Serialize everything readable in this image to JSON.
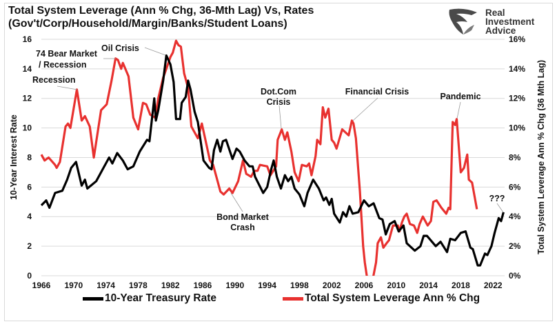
{
  "chart_data": {
    "type": "line",
    "title": "Total System Leverage (Ann % Chg, 36-Mth Lag) Vs, Rates",
    "subtitle": "(Gov't/Corp/Household/Margin/Banks/Student Loans)",
    "ylabel_left": "10-Year Interest Rate",
    "ylabel_right": "Total System Leverage Ann % Chg (36 Mth Lag)",
    "ylim_left": [
      0,
      16
    ],
    "ylim_right": [
      0,
      16
    ],
    "y_ticks_left": [
      "0",
      "2",
      "4",
      "6",
      "8",
      "10",
      "12",
      "14",
      "16"
    ],
    "y_ticks_right": [
      "0%",
      "2%",
      "4%",
      "6%",
      "8%",
      "10%",
      "12%",
      "14%",
      "16%"
    ],
    "x_ticks": [
      "1966",
      "1970",
      "1974",
      "1978",
      "1982",
      "1986",
      "1990",
      "1994",
      "1998",
      "2002",
      "2006",
      "2010",
      "2014",
      "2018",
      "2022"
    ],
    "xlim": [
      1966,
      2024
    ],
    "grid": true,
    "legend_position": "bottom",
    "series": [
      {
        "name": "10-Year Treasury Rate",
        "color": "#000000",
        "axis": "left",
        "points": [
          [
            1966.0,
            4.76
          ],
          [
            1966.6,
            5.1
          ],
          [
            1967.0,
            4.6
          ],
          [
            1967.7,
            5.6
          ],
          [
            1968.6,
            5.75
          ],
          [
            1969.2,
            6.5
          ],
          [
            1969.7,
            7.3
          ],
          [
            1970.3,
            7.7
          ],
          [
            1971.0,
            6.1
          ],
          [
            1971.4,
            6.5
          ],
          [
            1971.7,
            5.9
          ],
          [
            1972.8,
            6.4
          ],
          [
            1973.7,
            7.3
          ],
          [
            1974.4,
            8.0
          ],
          [
            1974.8,
            7.6
          ],
          [
            1975.4,
            8.3
          ],
          [
            1976.1,
            7.8
          ],
          [
            1976.7,
            7.2
          ],
          [
            1977.4,
            7.4
          ],
          [
            1978.2,
            8.4
          ],
          [
            1979.1,
            9.2
          ],
          [
            1979.4,
            9.1
          ],
          [
            1980.0,
            12.0
          ],
          [
            1980.2,
            10.5
          ],
          [
            1980.5,
            11.2
          ],
          [
            1981.1,
            13.2
          ],
          [
            1981.5,
            14.9
          ],
          [
            1982.0,
            14.3
          ],
          [
            1982.4,
            13.1
          ],
          [
            1982.7,
            10.6
          ],
          [
            1983.2,
            10.6
          ],
          [
            1983.4,
            11.7
          ],
          [
            1983.9,
            12.1
          ],
          [
            1984.2,
            13.2
          ],
          [
            1984.5,
            12.6
          ],
          [
            1985.0,
            11.1
          ],
          [
            1985.4,
            10.4
          ],
          [
            1986.1,
            7.8
          ],
          [
            1986.8,
            7.3
          ],
          [
            1987.1,
            7.2
          ],
          [
            1987.4,
            8.5
          ],
          [
            1987.8,
            9.2
          ],
          [
            1988.2,
            8.4
          ],
          [
            1988.5,
            9.1
          ],
          [
            1988.9,
            9.2
          ],
          [
            1989.7,
            7.9
          ],
          [
            1990.2,
            8.6
          ],
          [
            1990.6,
            8.4
          ],
          [
            1991.2,
            7.8
          ],
          [
            1991.8,
            7.4
          ],
          [
            1992.2,
            7.4
          ],
          [
            1992.5,
            6.7
          ],
          [
            1993.5,
            5.6
          ],
          [
            1994.0,
            6.0
          ],
          [
            1994.5,
            7.2
          ],
          [
            1994.8,
            7.8
          ],
          [
            1995.2,
            6.7
          ],
          [
            1995.7,
            5.9
          ],
          [
            1996.2,
            6.8
          ],
          [
            1996.6,
            6.4
          ],
          [
            1997.0,
            6.7
          ],
          [
            1997.4,
            5.9
          ],
          [
            1998.0,
            5.5
          ],
          [
            1998.6,
            4.7
          ],
          [
            1999.0,
            5.6
          ],
          [
            1999.7,
            6.5
          ],
          [
            2000.4,
            5.9
          ],
          [
            2001.0,
            5.1
          ],
          [
            2001.3,
            5.3
          ],
          [
            2001.7,
            4.8
          ],
          [
            2002.0,
            5.2
          ],
          [
            2002.3,
            4.2
          ],
          [
            2003.0,
            3.6
          ],
          [
            2003.4,
            4.3
          ],
          [
            2003.8,
            4.0
          ],
          [
            2004.2,
            4.7
          ],
          [
            2004.6,
            4.2
          ],
          [
            2005.3,
            4.3
          ],
          [
            2006.0,
            5.1
          ],
          [
            2006.6,
            4.7
          ],
          [
            2007.2,
            4.9
          ],
          [
            2007.9,
            3.9
          ],
          [
            2008.3,
            3.8
          ],
          [
            2008.7,
            2.8
          ],
          [
            2009.2,
            3.5
          ],
          [
            2009.8,
            3.7
          ],
          [
            2010.3,
            3.0
          ],
          [
            2010.9,
            3.4
          ],
          [
            2011.3,
            2.2
          ],
          [
            2012.3,
            1.7
          ],
          [
            2013.0,
            2.0
          ],
          [
            2013.4,
            2.7
          ],
          [
            2013.8,
            2.7
          ],
          [
            2014.9,
            2.0
          ],
          [
            2015.5,
            2.3
          ],
          [
            2016.3,
            1.6
          ],
          [
            2016.7,
            2.5
          ],
          [
            2017.3,
            2.4
          ],
          [
            2018.0,
            2.9
          ],
          [
            2018.6,
            3.0
          ],
          [
            2019.2,
            1.9
          ],
          [
            2019.5,
            1.8
          ],
          [
            2020.1,
            0.7
          ],
          [
            2020.4,
            0.7
          ],
          [
            2021.0,
            1.5
          ],
          [
            2021.3,
            1.4
          ],
          [
            2021.8,
            2.0
          ],
          [
            2022.2,
            2.9
          ],
          [
            2022.7,
            3.9
          ],
          [
            2023.0,
            3.7
          ],
          [
            2023.3,
            4.3
          ]
        ]
      },
      {
        "name": "Total System Leverage Ann % Chg",
        "color": "#e8312f",
        "axis": "right",
        "points": [
          [
            1966.0,
            8.2
          ],
          [
            1966.4,
            7.8
          ],
          [
            1966.9,
            8.0
          ],
          [
            1967.7,
            7.5
          ],
          [
            1967.9,
            7.3
          ],
          [
            1968.3,
            7.7
          ],
          [
            1969.0,
            10.1
          ],
          [
            1969.3,
            10.3
          ],
          [
            1969.6,
            10.0
          ],
          [
            1970.4,
            12.6
          ],
          [
            1971.0,
            10.5
          ],
          [
            1971.4,
            10.8
          ],
          [
            1972.0,
            10.1
          ],
          [
            1972.5,
            8.0
          ],
          [
            1973.4,
            11.2
          ],
          [
            1974.1,
            11.6
          ],
          [
            1974.7,
            13.2
          ],
          [
            1975.2,
            14.7
          ],
          [
            1975.5,
            14.6
          ],
          [
            1975.9,
            14.0
          ],
          [
            1976.1,
            14.4
          ],
          [
            1976.8,
            13.5
          ],
          [
            1977.4,
            10.7
          ],
          [
            1978.0,
            9.9
          ],
          [
            1978.6,
            11.7
          ],
          [
            1979.0,
            11.6
          ],
          [
            1979.5,
            10.9
          ],
          [
            1980.1,
            10.7
          ],
          [
            1980.5,
            12.0
          ],
          [
            1981.1,
            13.4
          ],
          [
            1981.5,
            14.0
          ],
          [
            1982.0,
            14.8
          ],
          [
            1982.3,
            15.1
          ],
          [
            1982.7,
            15.9
          ],
          [
            1983.0,
            15.6
          ],
          [
            1983.3,
            15.5
          ],
          [
            1983.7,
            13.7
          ],
          [
            1984.2,
            12.7
          ],
          [
            1984.6,
            10.1
          ],
          [
            1985.4,
            9.3
          ],
          [
            1985.9,
            10.3
          ],
          [
            1986.3,
            9.3
          ],
          [
            1986.9,
            7.8
          ],
          [
            1987.3,
            7.5
          ],
          [
            1988.2,
            5.7
          ],
          [
            1988.6,
            5.5
          ],
          [
            1989.3,
            5.9
          ],
          [
            1989.7,
            5.6
          ],
          [
            1990.4,
            6.4
          ],
          [
            1991.0,
            7.8
          ],
          [
            1991.4,
            6.9
          ],
          [
            1992.0,
            6.7
          ],
          [
            1992.4,
            7.1
          ],
          [
            1992.8,
            7.1
          ],
          [
            1993.1,
            7.5
          ],
          [
            1994.0,
            7.4
          ],
          [
            1994.4,
            6.8
          ],
          [
            1995.1,
            7.4
          ],
          [
            1995.3,
            9.2
          ],
          [
            1995.8,
            9.9
          ],
          [
            1996.2,
            9.2
          ],
          [
            1996.5,
            9.7
          ],
          [
            1997.0,
            8.4
          ],
          [
            1997.4,
            7.0
          ],
          [
            1997.9,
            6.4
          ],
          [
            1998.3,
            7.5
          ],
          [
            1998.9,
            7.4
          ],
          [
            1999.2,
            7.6
          ],
          [
            1999.5,
            6.8
          ],
          [
            2000.0,
            8.1
          ],
          [
            2000.2,
            9.2
          ],
          [
            2000.6,
            8.9
          ],
          [
            2000.9,
            11.4
          ],
          [
            2001.2,
            10.7
          ],
          [
            2001.6,
            11.3
          ],
          [
            2002.0,
            9.2
          ],
          [
            2002.3,
            9.0
          ],
          [
            2002.6,
            8.6
          ],
          [
            2003.3,
            9.9
          ],
          [
            2003.7,
            9.7
          ],
          [
            2004.1,
            9.5
          ],
          [
            2004.5,
            10.5
          ],
          [
            2004.7,
            10.3
          ],
          [
            2005.0,
            9.3
          ],
          [
            2005.5,
            5.7
          ],
          [
            2005.9,
            2.0
          ],
          [
            2006.1,
            0.9
          ],
          [
            2006.4,
            -0.2
          ],
          [
            2007.1,
            -0.2
          ],
          [
            2007.5,
            0.9
          ],
          [
            2007.7,
            2.2
          ],
          [
            2008.1,
            2.6
          ],
          [
            2008.4,
            1.9
          ],
          [
            2008.8,
            2.2
          ],
          [
            2009.1,
            2.4
          ],
          [
            2009.6,
            3.4
          ],
          [
            2010.2,
            3.4
          ],
          [
            2010.4,
            3.0
          ],
          [
            2010.7,
            3.6
          ],
          [
            2011.0,
            4.0
          ],
          [
            2011.3,
            4.2
          ],
          [
            2011.7,
            3.5
          ],
          [
            2012.2,
            3.4
          ],
          [
            2012.6,
            2.9
          ],
          [
            2012.9,
            3.5
          ],
          [
            2013.3,
            4.0
          ],
          [
            2013.9,
            3.4
          ],
          [
            2014.3,
            3.7
          ],
          [
            2014.6,
            5.0
          ],
          [
            2015.0,
            5.1
          ],
          [
            2015.6,
            4.6
          ],
          [
            2016.2,
            4.2
          ],
          [
            2016.5,
            4.6
          ],
          [
            2016.7,
            4.5
          ],
          [
            2017.0,
            10.4
          ],
          [
            2017.3,
            10.2
          ],
          [
            2017.5,
            10.6
          ],
          [
            2018.0,
            7.0
          ],
          [
            2018.4,
            7.3
          ],
          [
            2018.8,
            8.2
          ],
          [
            2019.0,
            6.5
          ],
          [
            2019.4,
            6.3
          ],
          [
            2020.0,
            4.5
          ]
        ]
      }
    ],
    "annotations": {
      "recession": "Recession",
      "bear_line1": "74 Bear Market",
      "bear_line2": "/ Recession",
      "oil": "Oil Crisis",
      "dotcom_line1": "Dot.Com",
      "dotcom_line2": "Crisis",
      "bond_line1": "Bond Market",
      "bond_line2": "Crash",
      "financial": "Financial Crisis",
      "pandemic": "Pandemic",
      "question": "???"
    }
  },
  "logo": {
    "line1": "Real",
    "line2": "Investment",
    "line3": "Advice"
  }
}
